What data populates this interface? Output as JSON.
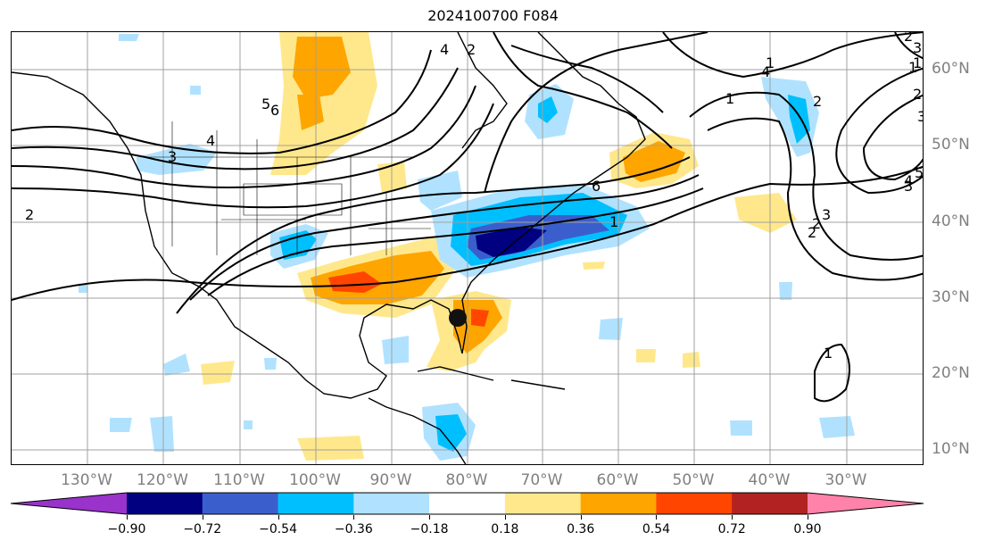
{
  "title": "2024100700 F084",
  "longitude_labels": [
    "130°W",
    "120°W",
    "110°W",
    "100°W",
    "90°W",
    "80°W",
    "70°W",
    "60°W",
    "50°W",
    "40°W",
    "30°W"
  ],
  "latitude_labels": [
    "60°N",
    "50°N",
    "40°N",
    "30°N",
    "20°N",
    "10°N"
  ],
  "colorbar": {
    "ticks": [
      "−0.90",
      "−0.72",
      "−0.54",
      "−0.36",
      "−0.18",
      "0.18",
      "0.36",
      "0.54",
      "0.72",
      "0.90"
    ],
    "colors": [
      "#9933cc",
      "#000080",
      "#3a5fcd",
      "#00bfff",
      "#b0e2ff",
      "#ffffff",
      "#ffe88c",
      "#ffa500",
      "#ff4500",
      "#b22222",
      "#ff82ab"
    ]
  },
  "contour_labels": [
    "6",
    "5",
    "4",
    "3",
    "2",
    "1",
    "4",
    "2",
    "1",
    "2",
    "3",
    "1",
    "2",
    "3",
    "4",
    "5",
    "6",
    "1",
    "2",
    "3",
    "6",
    "4",
    "3",
    "1",
    "2",
    "1",
    "2"
  ],
  "marker": "storm-center-marker"
}
